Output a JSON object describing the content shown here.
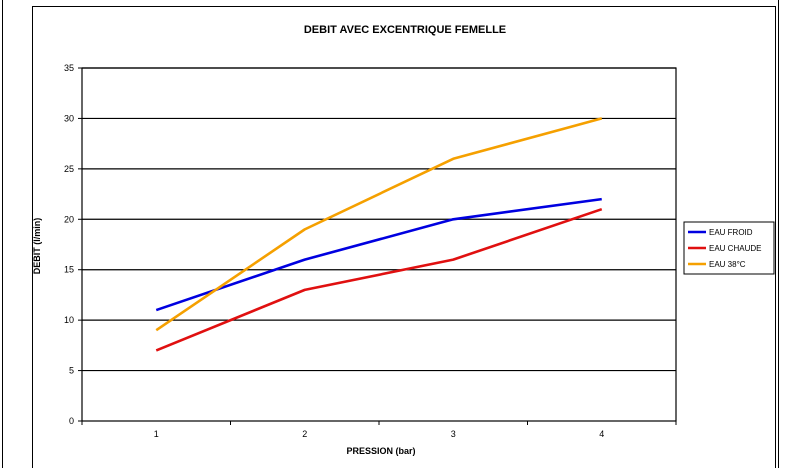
{
  "chart_data": {
    "type": "line",
    "title": "DEBIT AVEC EXCENTRIQUE FEMELLE",
    "xlabel": "PRESSION  (bar)",
    "ylabel": "DEBIT  (l/min)",
    "categories": [
      "1",
      "2",
      "3",
      "4"
    ],
    "ylim": [
      0,
      35
    ],
    "yticks": [
      "0",
      "5",
      "10",
      "15",
      "20",
      "25",
      "30",
      "35"
    ],
    "grid": true,
    "legend_position": "right",
    "series": [
      {
        "name": "EAU FROID",
        "color": "#0000e0",
        "values": [
          11,
          16,
          20,
          22
        ]
      },
      {
        "name": "EAU CHAUDE",
        "color": "#e01010",
        "values": [
          7,
          13,
          16,
          21
        ]
      },
      {
        "name": "EAU 38°C",
        "color": "#f5a000",
        "values": [
          9,
          19,
          26,
          30
        ]
      }
    ]
  }
}
